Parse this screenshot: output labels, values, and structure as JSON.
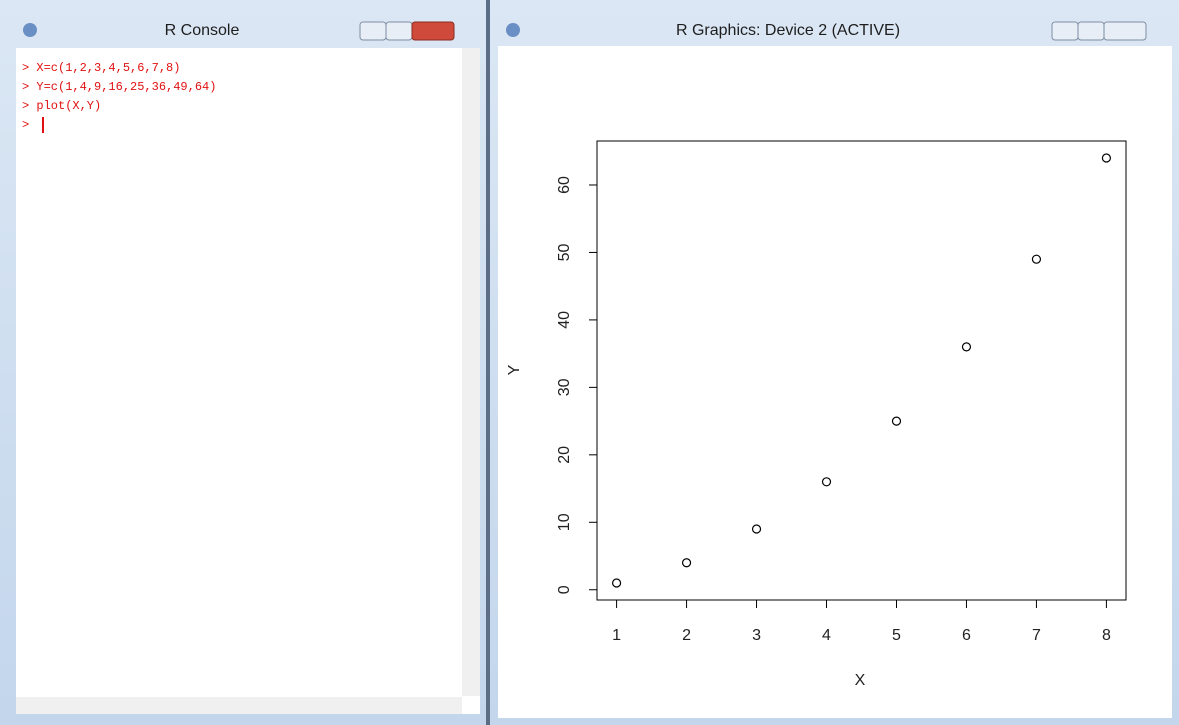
{
  "windows": {
    "console": {
      "title": "R Console",
      "lines": [
        "> X=c(1,2,3,4,5,6,7,8)",
        "> Y=c(1,4,9,16,25,36,49,64)",
        "> plot(X,Y)",
        ">"
      ]
    },
    "graphics": {
      "title": "R Graphics: Device 2 (ACTIVE)"
    }
  },
  "chart_data": {
    "type": "scatter",
    "xlabel": "X",
    "ylabel": "Y",
    "x": [
      1,
      2,
      3,
      4,
      5,
      6,
      7,
      8
    ],
    "values": [
      1,
      4,
      9,
      16,
      25,
      36,
      49,
      64
    ],
    "color": "#000000",
    "xlim": [
      0.72,
      8.28
    ],
    "ylim": [
      -1.52,
      66.52
    ],
    "xticks": [
      1,
      2,
      3,
      4,
      5,
      6,
      7,
      8
    ],
    "yticks": [
      0,
      10,
      20,
      30,
      40,
      50,
      60
    ],
    "grid": false
  }
}
